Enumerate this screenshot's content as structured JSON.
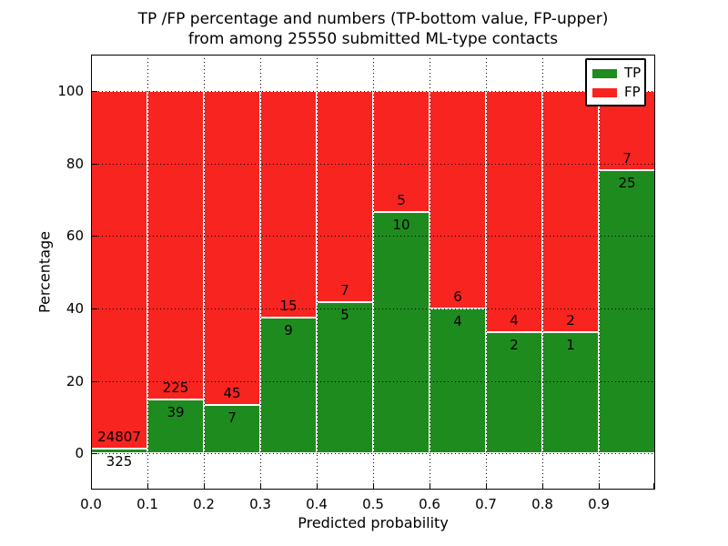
{
  "title": {
    "line1": "TP /FP percentage and numbers (TP-bottom value, FP-upper)",
    "line2": "from among 25550 submitted ML-type contacts"
  },
  "chart_data": {
    "type": "bar",
    "stacked": true,
    "title": "TP /FP percentage and numbers (TP-bottom value, FP-upper) from among 25550 submitted ML-type contacts",
    "xlabel": "Predicted probability",
    "ylabel": "Percentage",
    "total_submitted": 25550,
    "bin_starts": [
      0.0,
      0.1,
      0.2,
      0.3,
      0.4,
      0.5,
      0.6,
      0.7,
      0.8,
      0.9
    ],
    "bin_width": 0.1,
    "xlim": [
      0.0,
      1.0
    ],
    "ylim": [
      -10,
      110
    ],
    "yticks": [
      0,
      20,
      40,
      60,
      80,
      100
    ],
    "xtick_labels": [
      "0.0",
      "0.1",
      "0.2",
      "0.3",
      "0.4",
      "0.5",
      "0.6",
      "0.7",
      "0.8",
      "0.9"
    ],
    "grid": {
      "visible": true,
      "style": "dotted"
    },
    "legend_position": "upper right",
    "series": [
      {
        "name": "TP",
        "color": "#1e8b1e",
        "counts": [
          325,
          39,
          7,
          9,
          5,
          10,
          4,
          2,
          1,
          25
        ]
      },
      {
        "name": "FP",
        "color": "#f82420",
        "counts": [
          24807,
          225,
          45,
          15,
          7,
          5,
          6,
          4,
          2,
          7
        ]
      }
    ],
    "tp_percent_of_bin": [
      1.29,
      14.77,
      13.46,
      37.5,
      41.67,
      66.67,
      40.0,
      33.33,
      33.33,
      78.13
    ]
  }
}
